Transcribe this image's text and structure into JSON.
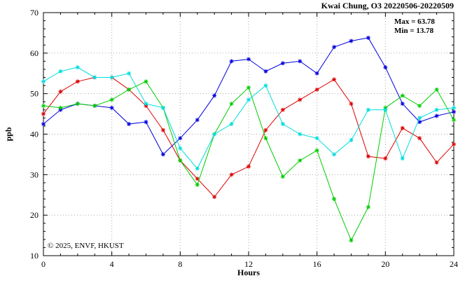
{
  "title": "Kwai Chung, O3 20220506-20220509",
  "annotation": {
    "max_label": "Max = 63.78",
    "min_label": "Min = 13.78"
  },
  "watermark": "© 2025, ENVF, HKUST",
  "chart_data": {
    "type": "line",
    "title": "Kwai Chung, O3 20220506-20220509",
    "xlabel": "Hours",
    "ylabel": "ppb",
    "xlim": [
      0,
      24
    ],
    "ylim": [
      10,
      70
    ],
    "xticks": [
      0,
      4,
      8,
      12,
      16,
      20,
      24
    ],
    "yticks": [
      10,
      20,
      30,
      40,
      50,
      60,
      70
    ],
    "x_minor_step": 1,
    "y_minor_step": 2,
    "grid": true,
    "legend": "none",
    "marker": "asterisk",
    "x": [
      0,
      1,
      2,
      3,
      4,
      5,
      6,
      7,
      8,
      9,
      10,
      11,
      12,
      13,
      14,
      15,
      16,
      17,
      18,
      19,
      20,
      21,
      22,
      23,
      24
    ],
    "series": [
      {
        "name": "series-blue",
        "color": "#0000dd",
        "values": [
          42.5,
          46,
          47.5,
          47,
          46.5,
          42.5,
          43,
          35,
          39,
          43.5,
          49.5,
          58,
          58.5,
          55.5,
          57.5,
          58,
          55,
          61.5,
          63,
          63.78,
          56.5,
          47.5,
          43,
          44.5,
          45.5
        ]
      },
      {
        "name": "series-red",
        "color": "#dd0000",
        "values": [
          45,
          50.5,
          53,
          54,
          54,
          51,
          47,
          41,
          33.5,
          29,
          24.5,
          30,
          32,
          41,
          46,
          48.5,
          51,
          53.5,
          47.5,
          34.5,
          34,
          41.5,
          39,
          33,
          37.5
        ]
      },
      {
        "name": "series-green",
        "color": "#00cc00",
        "values": [
          47,
          46.5,
          47.5,
          47,
          48.5,
          51,
          53,
          46.5,
          33.5,
          27.5,
          40,
          47.5,
          51.5,
          39,
          29.5,
          33.5,
          36,
          24,
          13.78,
          22,
          46.5,
          49.5,
          47,
          51,
          43.5
        ]
      },
      {
        "name": "series-cyan",
        "color": "#00dddd",
        "values": [
          53,
          55.5,
          56.5,
          54,
          54,
          55,
          47.5,
          46.5,
          36.5,
          31.5,
          40,
          42.5,
          48.5,
          52,
          42.5,
          40,
          39,
          35,
          38.5,
          46,
          46,
          34,
          44,
          46,
          46.5
        ]
      }
    ]
  },
  "colors": {
    "grid": "#aaaaaa",
    "axis": "#000000",
    "watermark": "#d9d9d9"
  }
}
